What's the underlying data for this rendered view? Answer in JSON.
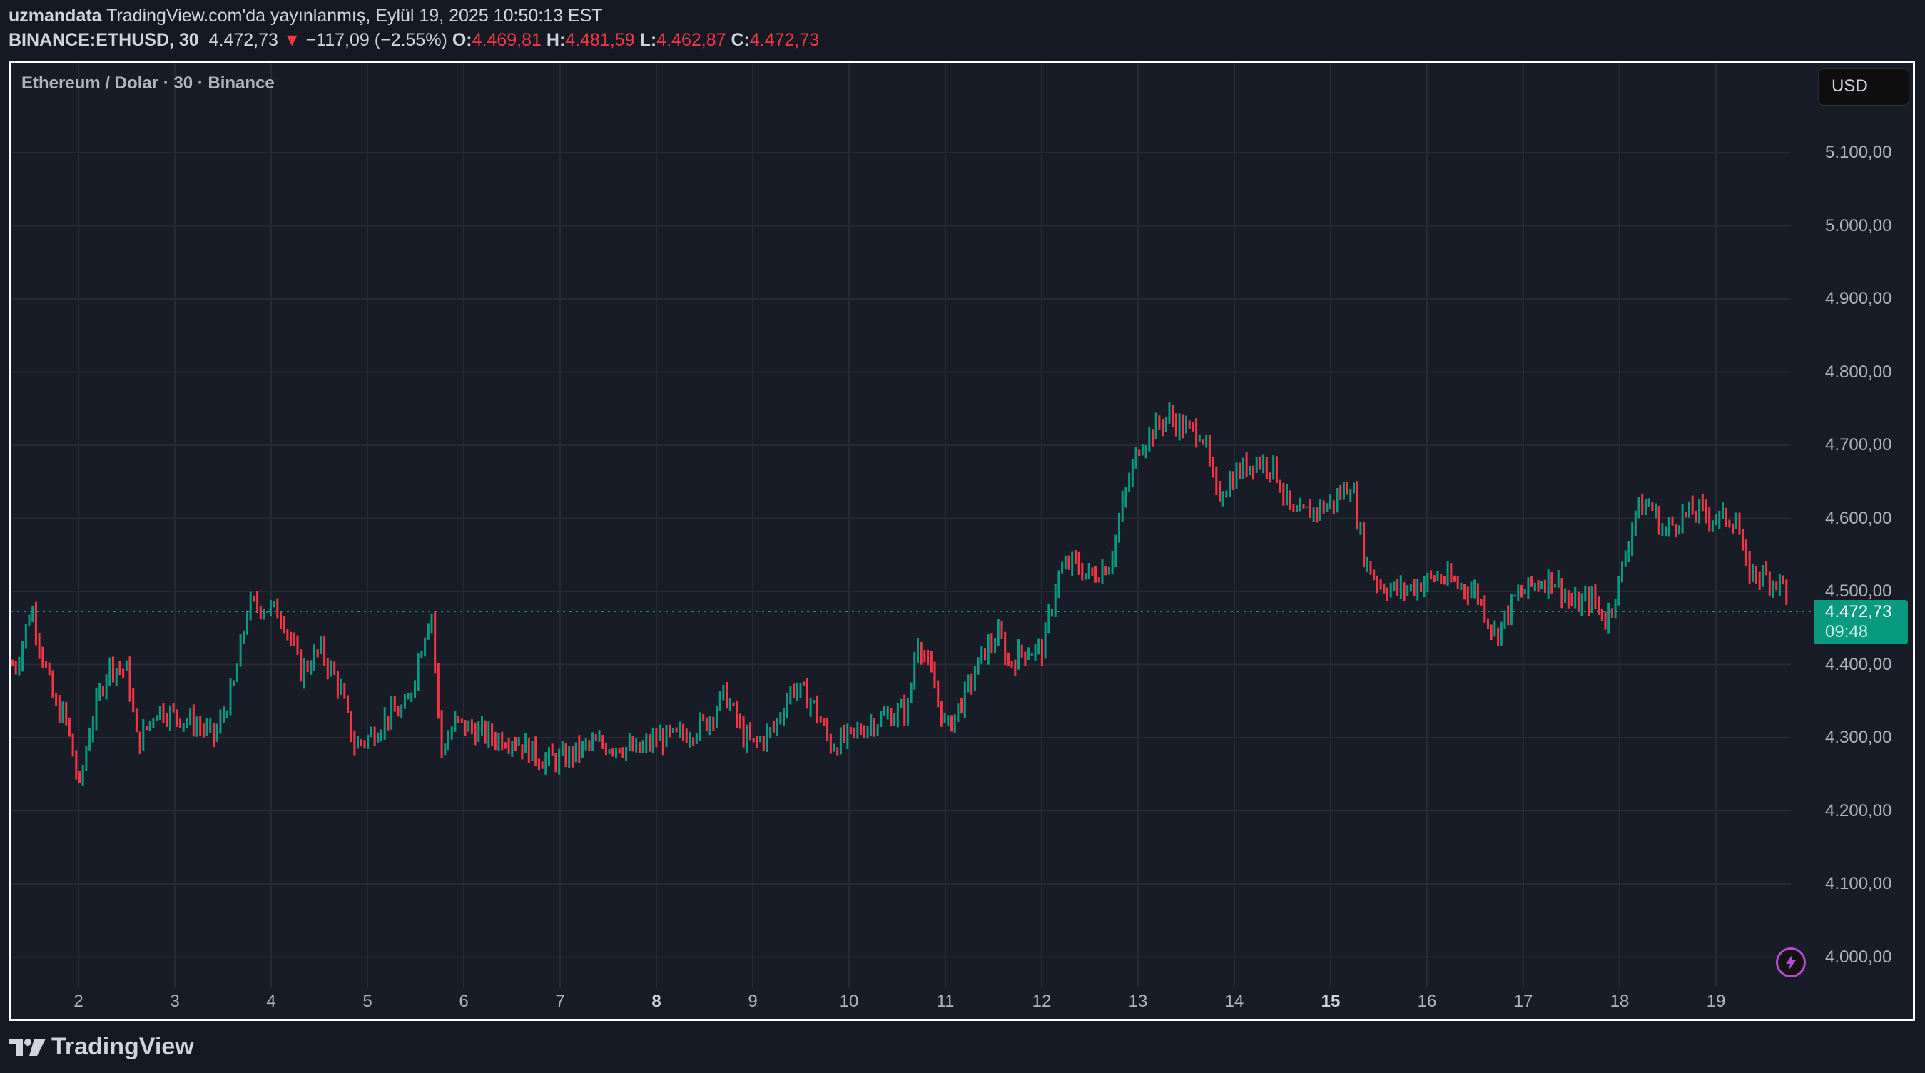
{
  "header": {
    "author": "uzmandata",
    "published": "TradingView.com'da yayınlanmış, Eylül 19, 2025 10:50:13 EST",
    "symbol": "BINANCE:ETHUSD, 30",
    "last": "4.472,73",
    "change_arrow": "▼",
    "change": "−117,09 (−2.55%)",
    "o_label": "O:",
    "o": "4.469,81",
    "h_label": "H:",
    "h": "4.481,59",
    "l_label": "L:",
    "l": "4.462,87",
    "c_label": "C:",
    "c": "4.472,73"
  },
  "chart": {
    "title": "Ethereum / Dolar · 30 · Binance",
    "currency_button": "USD",
    "price_tag": {
      "value": "4.472,73",
      "countdown": "09:48"
    },
    "icons": {
      "bolt": "lightning-icon",
      "logo": "tradingview-logo-icon"
    },
    "colors": {
      "up": "#089981",
      "down": "#f23645",
      "bg": "#181c27",
      "grid": "#262a35",
      "price_line": "#089981",
      "bolt": "#b74bd1"
    }
  },
  "footer": {
    "brand": "TradingView"
  },
  "chart_data": {
    "type": "candlestick",
    "title": "Ethereum / Dolar · 30 · Binance",
    "symbol": "BINANCE:ETHUSD",
    "interval": "30",
    "xlabel": "",
    "ylabel": "USD",
    "y_ticks": [
      "5.100,00",
      "5.000,00",
      "4.900,00",
      "4.800,00",
      "4.700,00",
      "4.600,00",
      "4.500,00",
      "4.400,00",
      "4.300,00",
      "4.200,00",
      "4.100,00",
      "4.000,00"
    ],
    "y_tick_values": [
      5100,
      5000,
      4900,
      4800,
      4700,
      4600,
      4500,
      4400,
      4300,
      4200,
      4100,
      4000
    ],
    "x_ticks": [
      "2",
      "3",
      "4",
      "5",
      "6",
      "7",
      "8",
      "9",
      "10",
      "11",
      "12",
      "13",
      "14",
      "15",
      "16",
      "17",
      "18",
      "19"
    ],
    "x_bold": [
      "8",
      "15"
    ],
    "ylim": [
      3960,
      5180
    ],
    "grid": true,
    "last_price": 4472.73,
    "path_points": [
      [
        1.35,
        4400
      ],
      [
        1.5,
        4480
      ],
      [
        1.6,
        4420
      ],
      [
        1.75,
        4340
      ],
      [
        1.85,
        4330
      ],
      [
        2.0,
        4230
      ],
      [
        2.1,
        4310
      ],
      [
        2.3,
        4400
      ],
      [
        2.5,
        4390
      ],
      [
        2.6,
        4290
      ],
      [
        2.8,
        4340
      ],
      [
        3.0,
        4330
      ],
      [
        3.2,
        4320
      ],
      [
        3.4,
        4300
      ],
      [
        3.6,
        4370
      ],
      [
        3.75,
        4480
      ],
      [
        3.9,
        4480
      ],
      [
        4.1,
        4470
      ],
      [
        4.3,
        4390
      ],
      [
        4.5,
        4420
      ],
      [
        4.7,
        4370
      ],
      [
        4.85,
        4290
      ],
      [
        5.0,
        4300
      ],
      [
        5.2,
        4330
      ],
      [
        5.4,
        4340
      ],
      [
        5.5,
        4400
      ],
      [
        5.65,
        4480
      ],
      [
        5.75,
        4280
      ],
      [
        5.9,
        4320
      ],
      [
        6.1,
        4310
      ],
      [
        6.3,
        4300
      ],
      [
        6.5,
        4300
      ],
      [
        6.8,
        4270
      ],
      [
        7.0,
        4270
      ],
      [
        7.3,
        4290
      ],
      [
        7.6,
        4290
      ],
      [
        7.8,
        4280
      ],
      [
        8.0,
        4300
      ],
      [
        8.2,
        4300
      ],
      [
        8.5,
        4320
      ],
      [
        8.7,
        4360
      ],
      [
        8.9,
        4300
      ],
      [
        9.0,
        4290
      ],
      [
        9.2,
        4310
      ],
      [
        9.4,
        4370
      ],
      [
        9.6,
        4350
      ],
      [
        9.8,
        4290
      ],
      [
        10.0,
        4300
      ],
      [
        10.2,
        4320
      ],
      [
        10.4,
        4330
      ],
      [
        10.6,
        4340
      ],
      [
        10.7,
        4440
      ],
      [
        10.85,
        4380
      ],
      [
        11.0,
        4310
      ],
      [
        11.2,
        4360
      ],
      [
        11.4,
        4420
      ],
      [
        11.55,
        4440
      ],
      [
        11.65,
        4400
      ],
      [
        11.8,
        4420
      ],
      [
        12.0,
        4420
      ],
      [
        12.15,
        4520
      ],
      [
        12.3,
        4540
      ],
      [
        12.5,
        4520
      ],
      [
        12.7,
        4540
      ],
      [
        12.85,
        4630
      ],
      [
        13.0,
        4700
      ],
      [
        13.15,
        4720
      ],
      [
        13.3,
        4740
      ],
      [
        13.5,
        4720
      ],
      [
        13.65,
        4720
      ],
      [
        13.8,
        4630
      ],
      [
        14.0,
        4660
      ],
      [
        14.2,
        4680
      ],
      [
        14.4,
        4670
      ],
      [
        14.6,
        4600
      ],
      [
        14.8,
        4610
      ],
      [
        15.0,
        4620
      ],
      [
        15.2,
        4650
      ],
      [
        15.35,
        4540
      ],
      [
        15.5,
        4510
      ],
      [
        15.7,
        4500
      ],
      [
        15.9,
        4510
      ],
      [
        16.1,
        4520
      ],
      [
        16.3,
        4510
      ],
      [
        16.5,
        4500
      ],
      [
        16.7,
        4440
      ],
      [
        16.9,
        4490
      ],
      [
        17.1,
        4510
      ],
      [
        17.3,
        4520
      ],
      [
        17.5,
        4480
      ],
      [
        17.7,
        4490
      ],
      [
        17.85,
        4460
      ],
      [
        18.0,
        4520
      ],
      [
        18.15,
        4610
      ],
      [
        18.3,
        4620
      ],
      [
        18.45,
        4580
      ],
      [
        18.6,
        4600
      ],
      [
        18.8,
        4610
      ],
      [
        19.0,
        4600
      ],
      [
        19.2,
        4600
      ],
      [
        19.3,
        4530
      ],
      [
        19.5,
        4520
      ],
      [
        19.7,
        4510
      ],
      [
        19.75,
        4473
      ]
    ]
  }
}
